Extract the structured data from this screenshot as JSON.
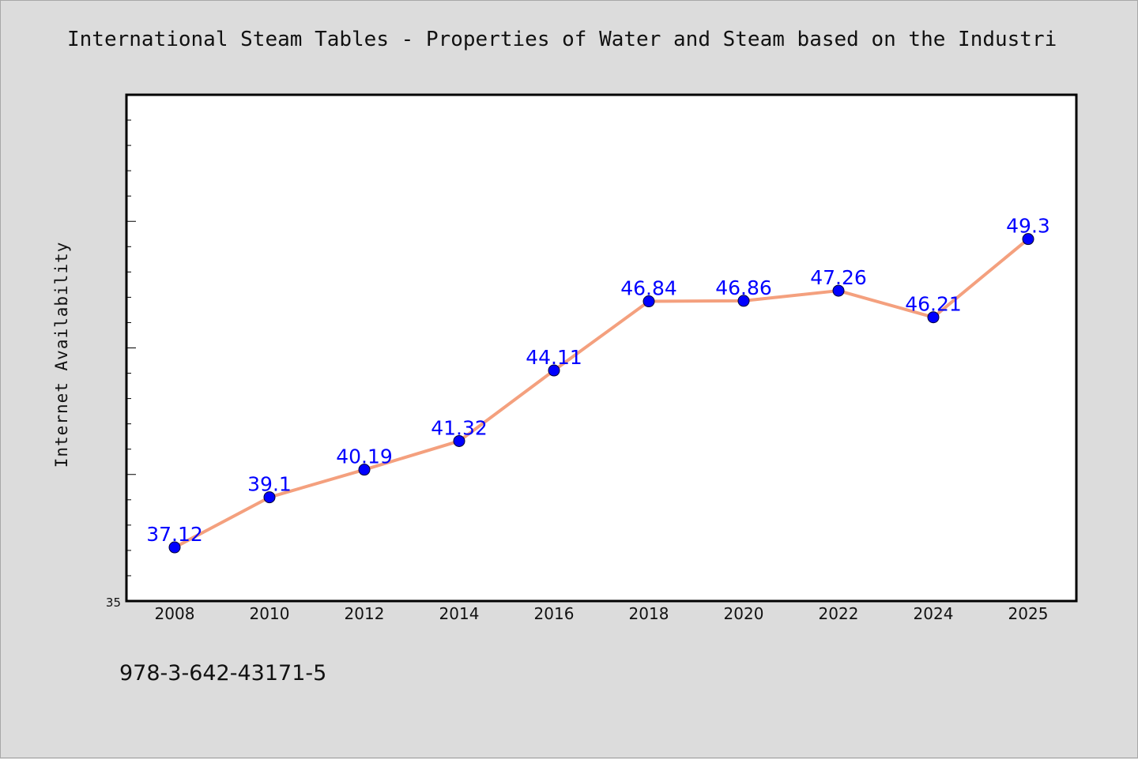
{
  "chart_data": {
    "type": "line",
    "title": "International Steam Tables - Properties of Water and Steam based on the Industri",
    "xlabel": "",
    "ylabel": "Internet Availability",
    "categories": [
      "2008",
      "2010",
      "2012",
      "2014",
      "2016",
      "2018",
      "2020",
      "2022",
      "2024",
      "2025"
    ],
    "series": [
      {
        "values": [
          37.12,
          39.1,
          40.19,
          41.32,
          44.11,
          46.84,
          46.86,
          47.26,
          46.21,
          49.3
        ],
        "labels": [
          "37.12",
          "39.1",
          "40.19",
          "41.32",
          "44.11",
          "46.84",
          "46.86",
          "47.26",
          "46.21",
          "49.3"
        ]
      }
    ],
    "ylim": [
      35,
      55
    ],
    "ytick_labels": [
      "35"
    ],
    "grid": false,
    "legend": "none",
    "line_color": "#f4a07e",
    "marker_color": "#0000ff",
    "label_color": "#0000ff"
  },
  "footer": {
    "isbn": "978-3-642-43171-5"
  }
}
